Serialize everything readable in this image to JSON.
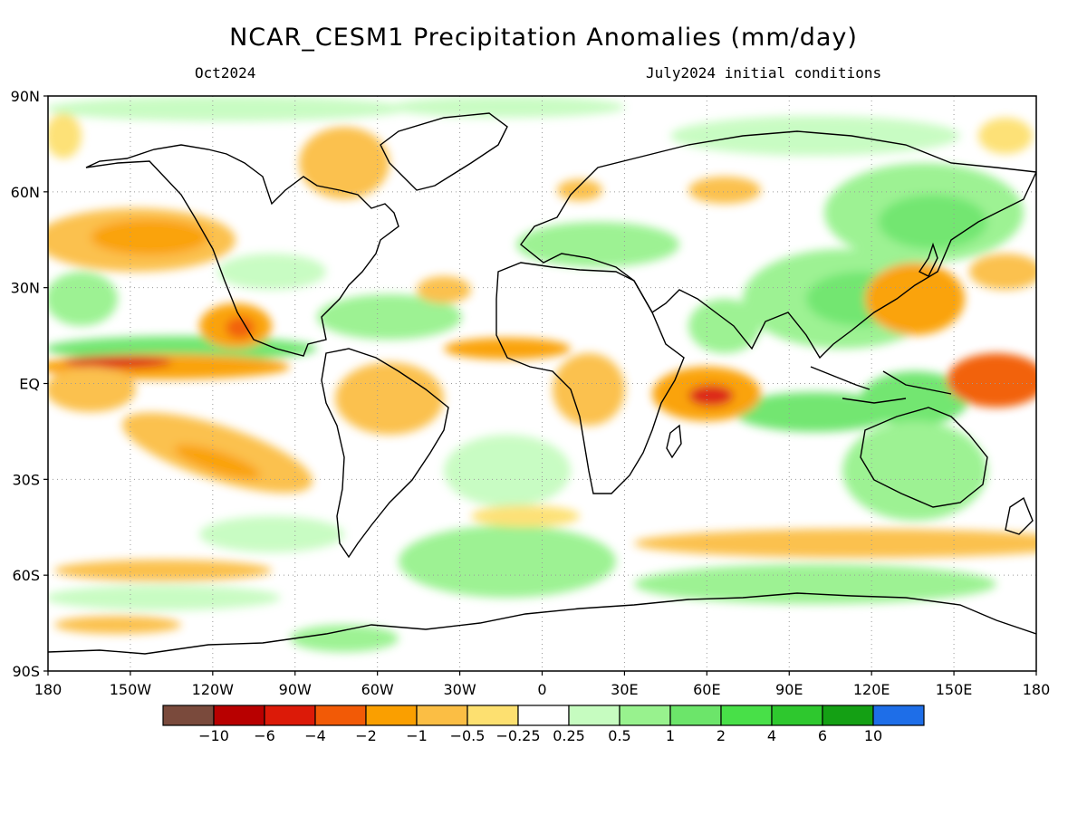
{
  "title": "NCAR_CESM1 Precipitation Anomalies (mm/day)",
  "subtitle_left": "Oct2024",
  "subtitle_right": "July2024 initial conditions",
  "map": {
    "lat_ticks": [
      {
        "lat": 90,
        "label": "90N"
      },
      {
        "lat": 60,
        "label": "60N"
      },
      {
        "lat": 30,
        "label": "30N"
      },
      {
        "lat": 0,
        "label": "EQ"
      },
      {
        "lat": -30,
        "label": "30S"
      },
      {
        "lat": -60,
        "label": "60S"
      },
      {
        "lat": -90,
        "label": "90S"
      }
    ],
    "lon_ticks": [
      {
        "lon": 180,
        "label": "180"
      },
      {
        "lon": -150,
        "label": "150W"
      },
      {
        "lon": -120,
        "label": "120W"
      },
      {
        "lon": -90,
        "label": "90W"
      },
      {
        "lon": -60,
        "label": "60W"
      },
      {
        "lon": -30,
        "label": "30W"
      },
      {
        "lon": 0,
        "label": "0"
      },
      {
        "lon": 30,
        "label": "30E"
      },
      {
        "lon": 60,
        "label": "60E"
      },
      {
        "lon": 90,
        "label": "90E"
      },
      {
        "lon": 120,
        "label": "120E"
      },
      {
        "lon": 150,
        "label": "150E"
      },
      {
        "lon": 180,
        "label": "180"
      }
    ],
    "grid": "dotted"
  },
  "colorbar": {
    "colors": [
      "#7a4a3c",
      "#b80000",
      "#dc1a08",
      "#f25a06",
      "#fa9f00",
      "#fbbe44",
      "#fde070",
      "#ffffff",
      "#c6fcc0",
      "#98f28e",
      "#6ce56a",
      "#48e048",
      "#2ec82e",
      "#14a014",
      "#1e6ee8"
    ],
    "labels": [
      "−10",
      "−6",
      "−4",
      "−2",
      "−1",
      "−0.5",
      "−0.25",
      "0.25",
      "0.5",
      "1",
      "2",
      "4",
      "6",
      "10"
    ]
  },
  "anomaly_colors": {
    "dry_strong": "#dc1a08",
    "dry_mod": "#f25a06",
    "dry_light": "#fa9f00",
    "dry_weak": "#fbbe44",
    "dry_faint": "#fde070",
    "wet_faint": "#c6fcc0",
    "wet_light": "#98f28e",
    "wet_mod": "#6ce56a",
    "wet_strong": "#48e048",
    "wet_vstrong": "#2ec82e"
  }
}
